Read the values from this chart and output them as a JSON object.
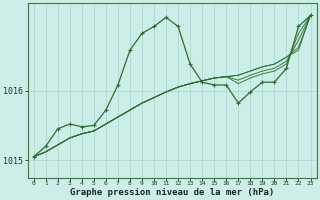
{
  "background_color": "#cceee8",
  "grid_color": "#aad4cc",
  "line_color": "#2d6e2d",
  "marker_color": "#2d6e2d",
  "xlabel": "Graphe pression niveau de la mer (hPa)",
  "xlabel_fontsize": 6.5,
  "xlim": [
    -0.5,
    23.5
  ],
  "ylim": [
    1014.75,
    1017.25
  ],
  "yticks": [
    1015,
    1016
  ],
  "xticks": [
    0,
    1,
    2,
    3,
    4,
    5,
    6,
    7,
    8,
    9,
    10,
    11,
    12,
    13,
    14,
    15,
    16,
    17,
    18,
    19,
    20,
    21,
    22,
    23
  ],
  "main_series_x": [
    0,
    1,
    2,
    3,
    4,
    5,
    6,
    7,
    8,
    9,
    10,
    11,
    12,
    13,
    14,
    15,
    16,
    17,
    18,
    19,
    20,
    21,
    22,
    23
  ],
  "main_series_y": [
    1015.05,
    1015.2,
    1015.45,
    1015.52,
    1015.48,
    1015.5,
    1015.72,
    1016.08,
    1016.58,
    1016.82,
    1016.92,
    1017.05,
    1016.92,
    1016.38,
    1016.12,
    1016.08,
    1016.08,
    1015.82,
    1015.98,
    1016.12,
    1016.12,
    1016.32,
    1016.92,
    1017.08
  ],
  "envelope_lines": [
    [
      1015.05,
      1015.12,
      1015.22,
      1015.32,
      1015.38,
      1015.42,
      1015.52,
      1015.62,
      1015.72,
      1015.82,
      1015.9,
      1015.98,
      1016.05,
      1016.1,
      1016.14,
      1016.18,
      1016.2,
      1016.22,
      1016.28,
      1016.34,
      1016.38,
      1016.48,
      1016.62,
      1017.08
    ],
    [
      1015.05,
      1015.12,
      1015.22,
      1015.32,
      1015.38,
      1015.42,
      1015.52,
      1015.62,
      1015.72,
      1015.82,
      1015.9,
      1015.98,
      1016.05,
      1016.1,
      1016.14,
      1016.18,
      1016.2,
      1016.15,
      1016.22,
      1016.28,
      1016.32,
      1016.42,
      1016.72,
      1017.08
    ],
    [
      1015.05,
      1015.12,
      1015.22,
      1015.32,
      1015.38,
      1015.42,
      1015.52,
      1015.62,
      1015.72,
      1015.82,
      1015.9,
      1015.98,
      1016.05,
      1016.1,
      1016.14,
      1016.18,
      1016.2,
      1016.22,
      1016.28,
      1016.34,
      1016.38,
      1016.48,
      1016.58,
      1017.08
    ],
    [
      1015.05,
      1015.12,
      1015.22,
      1015.32,
      1015.38,
      1015.42,
      1015.52,
      1015.62,
      1015.72,
      1015.82,
      1015.9,
      1015.98,
      1016.05,
      1016.1,
      1016.14,
      1016.18,
      1016.2,
      1016.1,
      1016.18,
      1016.24,
      1016.28,
      1016.38,
      1016.82,
      1017.08
    ]
  ]
}
